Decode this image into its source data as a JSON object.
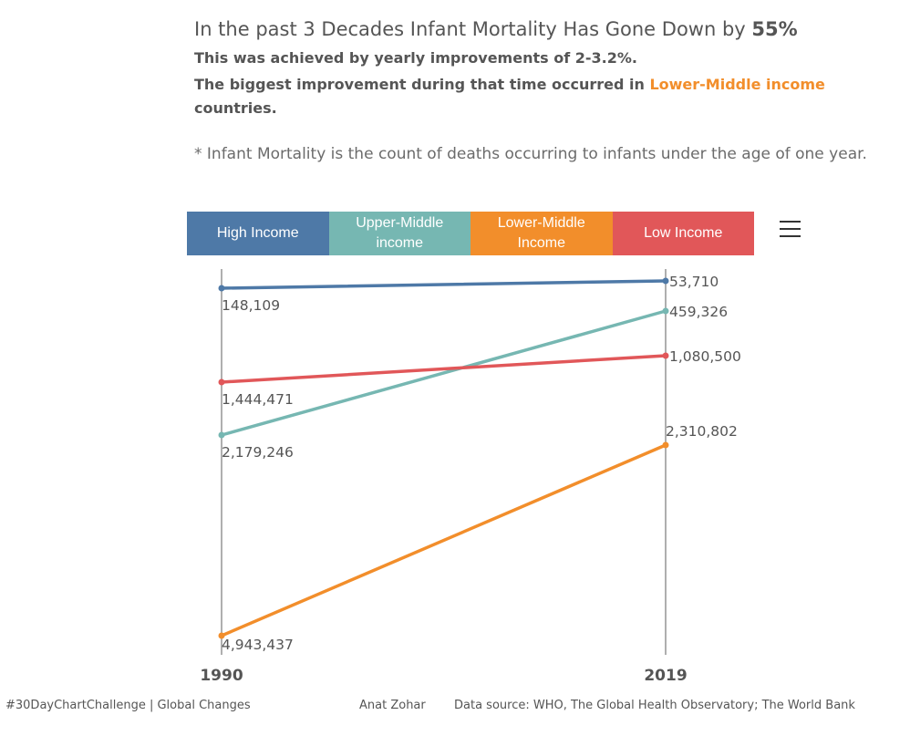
{
  "header": {
    "title_prefix": "In the past 3 Decades Infant Mortality Has Gone Down by ",
    "title_highlight": "55%",
    "line1": "This was achieved by yearly improvements of 2-3.2%.",
    "line2_prefix": "The biggest improvement during that time occurred in ",
    "line2_highlight": "Lower-Middle income",
    "line3": "countries.",
    "note": "* Infant Mortality is the count of deaths occurring to infants under the age of one year."
  },
  "legend": [
    {
      "label": "High Income",
      "color": "#4e79a7"
    },
    {
      "label": "Upper-Middle income",
      "color": "#76b7b2"
    },
    {
      "label": "Lower-Middle Income",
      "color": "#f28e2b"
    },
    {
      "label": "Low Income",
      "color": "#e15759"
    }
  ],
  "menu_icon": "hamburger-menu-icon",
  "chart_data": {
    "type": "line",
    "x": [
      "1990",
      "2019"
    ],
    "series": [
      {
        "name": "High Income",
        "color": "#4e79a7",
        "values": [
          148109,
          53710
        ],
        "labels": [
          "148,109",
          "53,710"
        ]
      },
      {
        "name": "Upper-Middle income",
        "color": "#76b7b2",
        "values": [
          2179246,
          459326
        ],
        "labels": [
          "2,179,246",
          "459,326"
        ]
      },
      {
        "name": "Lower-Middle Income",
        "color": "#f28e2b",
        "values": [
          4943437,
          2310802
        ],
        "labels": [
          "4,943,437",
          "2,310,802"
        ]
      },
      {
        "name": "Low Income",
        "color": "#e15759",
        "values": [
          1444471,
          1080500
        ],
        "labels": [
          "1,444,471",
          "1,080,500"
        ]
      }
    ],
    "y_reversed": true,
    "ylim": [
      0,
      5000000
    ],
    "grid": false,
    "legend_placement": "top"
  },
  "footer": {
    "left": "#30DayChartChallenge  |  Global Changes",
    "author": "Anat Zohar",
    "source": "Data source: WHO, The Global Health Observatory; The World Bank"
  }
}
